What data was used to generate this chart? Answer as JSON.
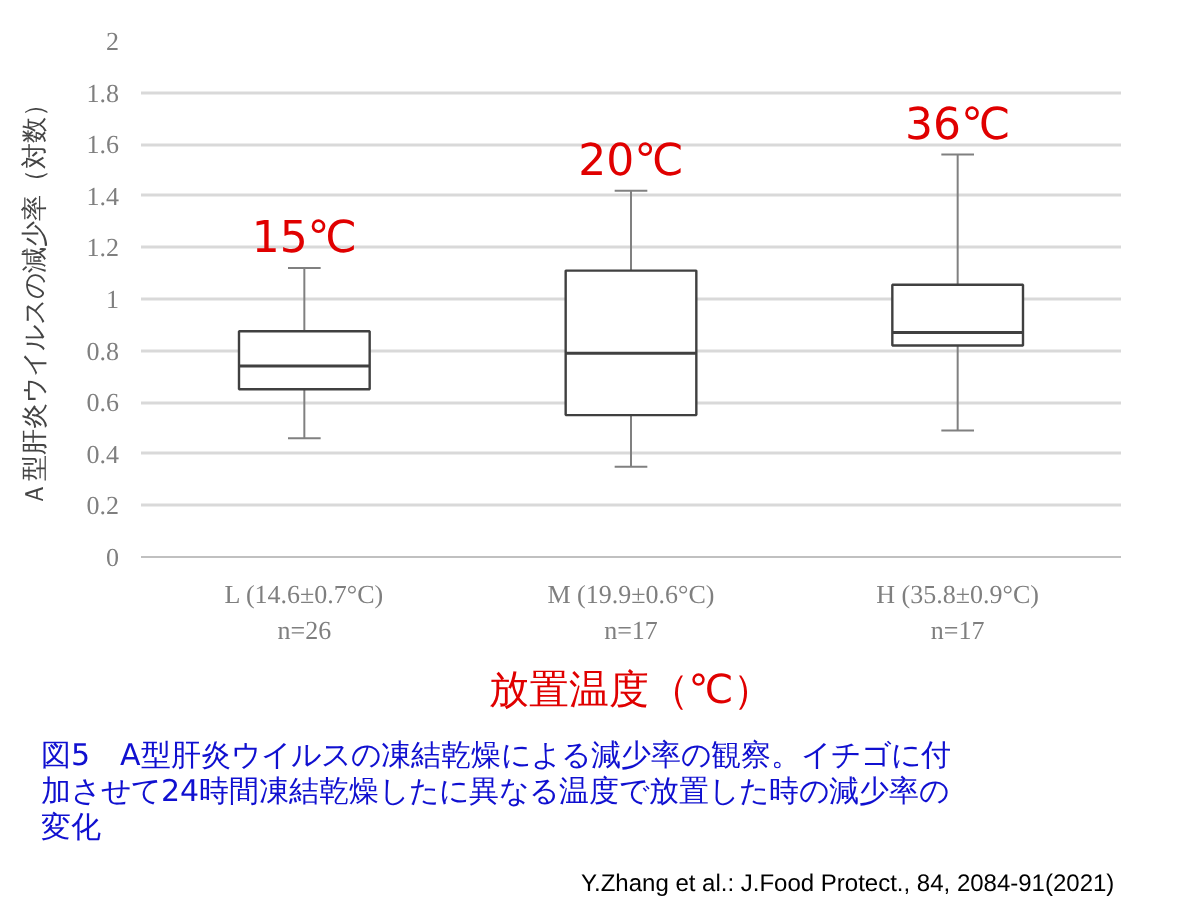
{
  "chart_data": {
    "type": "box",
    "categories": [
      "L (14.6±0.7°C)\nn=26",
      "M (19.9±0.6°C)\nn=17",
      "H (35.8±0.9°C)\nn=17"
    ],
    "boxes": [
      {
        "low": 0.46,
        "q1": 0.65,
        "median": 0.74,
        "q3": 0.875,
        "high": 1.12
      },
      {
        "low": 0.35,
        "q1": 0.55,
        "median": 0.79,
        "q3": 1.11,
        "high": 1.42
      },
      {
        "low": 0.49,
        "q1": 0.82,
        "median": 0.87,
        "q3": 1.055,
        "high": 1.56
      }
    ],
    "color": "#ffffff",
    "ylim": [
      0,
      2
    ],
    "yticks": [
      0,
      0.2,
      0.4,
      0.6,
      0.8,
      1,
      1.2,
      1.4,
      1.6,
      1.8,
      2
    ],
    "grid": "y",
    "xlabel": "放置温度（℃）",
    "ylabel": "Ａ型肝炎ウイルスの減少率（対数）",
    "annotations": [
      {
        "text": "15℃",
        "x": "L (14.6±0.7°C)\nn=26",
        "y": 1.12
      },
      {
        "text": "20℃",
        "x": "M (19.9±0.6°C)\nn=17",
        "y": 1.42
      },
      {
        "text": "36℃",
        "x": "H (35.8±0.9°C)\nn=17",
        "y": 1.56
      },
      "図5　A型肝炎ウイルスの凍結乾燥による減少率の観察。イチゴに付加させて24時間凍結乾燥したに異なる温度で放置した時の減少率の変化",
      "Y.Zhang et al.: J.Food Protect.,  84, 2084-91(2021)"
    ]
  }
}
